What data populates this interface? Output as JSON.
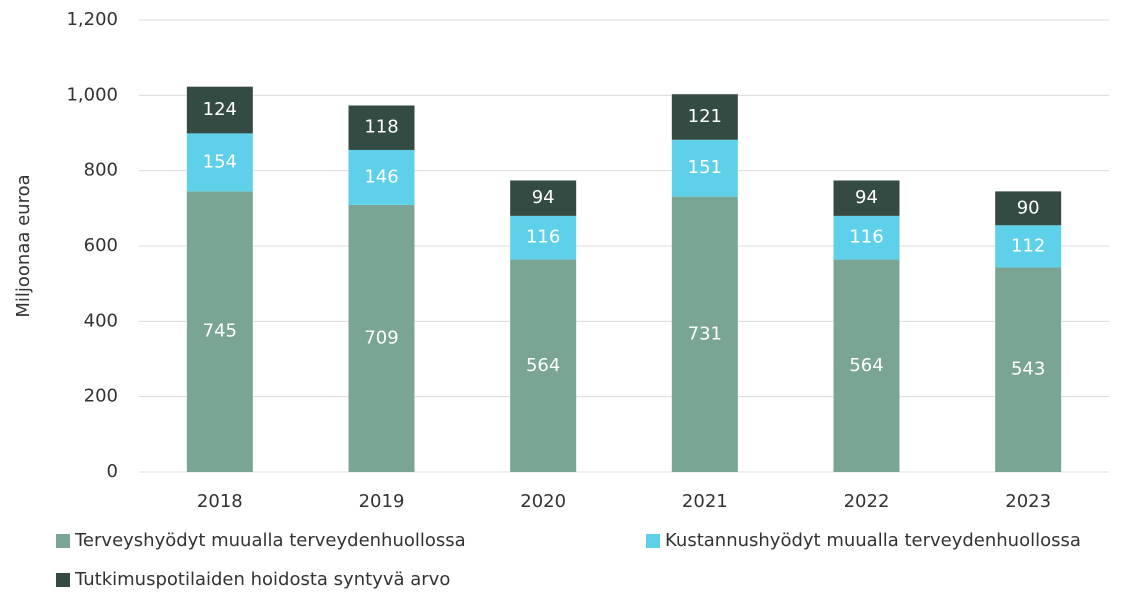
{
  "chart_data": {
    "type": "stacked_bar",
    "y_label": "Miljoonaa euroa",
    "categories": [
      "2018",
      "2019",
      "2020",
      "2021",
      "2022",
      "2023"
    ],
    "series": [
      {
        "name": "Terveyshyödyt muualla terveydenhuollossa",
        "color": "#7aa594",
        "values": [
          745,
          709,
          564,
          731,
          564,
          543
        ]
      },
      {
        "name": "Kustannushyödyt muualla terveydenhuollossa",
        "color": "#5fd0ea",
        "values": [
          154,
          146,
          116,
          151,
          116,
          112
        ]
      },
      {
        "name": "Tutkimuspotilaiden hoidosta syntyvä arvo",
        "color": "#344b43",
        "values": [
          124,
          118,
          94,
          121,
          94,
          90
        ]
      }
    ],
    "ylim": [
      0,
      1200
    ],
    "yticks": [
      0,
      200,
      400,
      600,
      800,
      {
        "value": 1000,
        "label": "1,000"
      },
      {
        "value": 1200,
        "label": "1,200"
      }
    ],
    "grid": true
  }
}
